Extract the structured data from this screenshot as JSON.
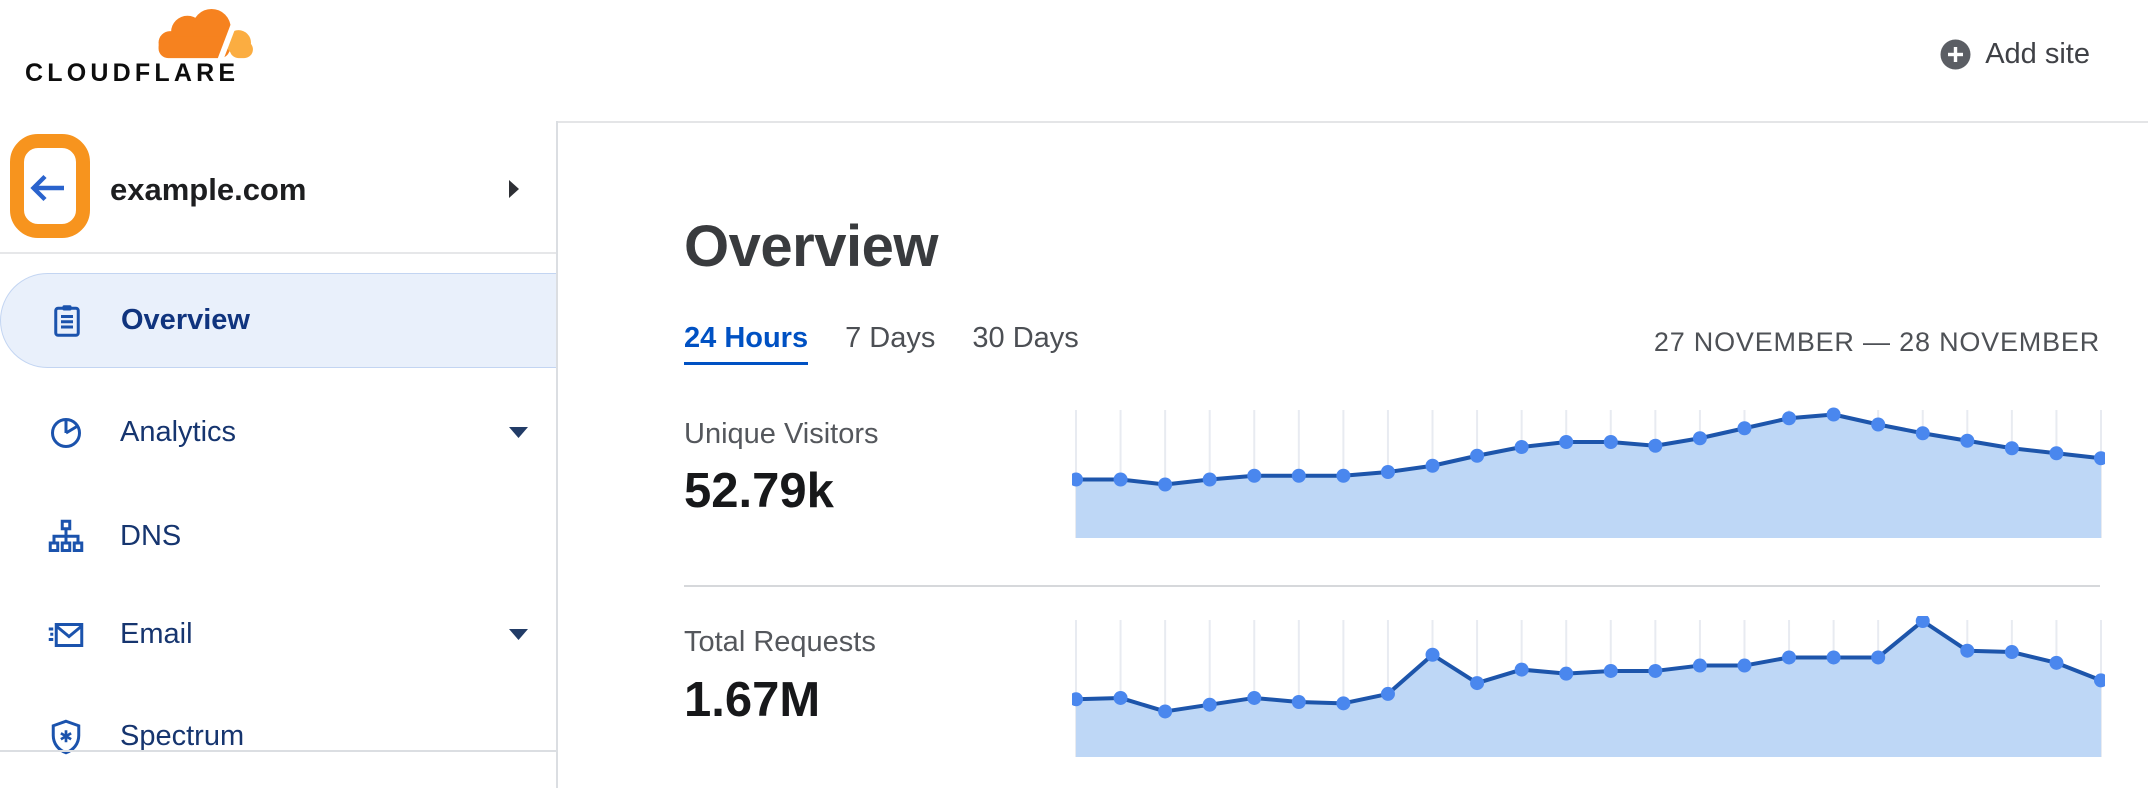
{
  "header": {
    "logo_text": "CLOUDFLARE",
    "add_site_label": "Add site"
  },
  "sidebar": {
    "site_name": "example.com",
    "items": [
      {
        "label": "Overview",
        "icon": "clipboard-icon",
        "active": true,
        "has_caret": false
      },
      {
        "label": "Analytics",
        "icon": "pie-chart-icon",
        "active": false,
        "has_caret": true
      },
      {
        "label": "DNS",
        "icon": "sitemap-icon",
        "active": false,
        "has_caret": false
      },
      {
        "label": "Email",
        "icon": "envelope-icon",
        "active": false,
        "has_caret": true
      },
      {
        "label": "Spectrum",
        "icon": "shield-icon",
        "active": false,
        "has_caret": false
      }
    ]
  },
  "main": {
    "title": "Overview",
    "tabs": [
      {
        "label": "24 Hours",
        "active": true
      },
      {
        "label": "7 Days",
        "active": false
      },
      {
        "label": "30 Days",
        "active": false
      }
    ],
    "date_range": "27 NOVEMBER — 28 NOVEMBER",
    "stats": [
      {
        "label": "Unique Visitors",
        "value": "52.79k"
      },
      {
        "label": "Total Requests",
        "value": "1.67M"
      }
    ]
  },
  "chart_data": [
    {
      "type": "area",
      "title": "Unique Visitors",
      "display_value": "52.79k",
      "points": 24,
      "x_axis": "hourly points, 27 November — 28 November (24 hours)",
      "y_axis": "unlabeled sparkline (relative height, % of chart peak)",
      "relative_values_pct": [
        46,
        46,
        42,
        46,
        49,
        49,
        49,
        52,
        57,
        65,
        72,
        76,
        76,
        73,
        79,
        87,
        95,
        98,
        90,
        83,
        77,
        71,
        67,
        63
      ],
      "grid": "vertical gridline at every point",
      "legend": "none"
    },
    {
      "type": "area",
      "title": "Total Requests",
      "display_value": "1.67M",
      "points": 24,
      "x_axis": "hourly points, 27 November — 28 November (24 hours)",
      "y_axis": "unlabeled sparkline (relative height, % of chart peak)",
      "relative_values_pct": [
        42,
        43,
        33,
        38,
        43,
        40,
        39,
        46,
        75,
        54,
        64,
        61,
        63,
        63,
        67,
        67,
        73,
        73,
        73,
        100,
        78,
        77,
        69,
        56
      ],
      "grid": "vertical gridline at every point",
      "legend": "none"
    }
  ],
  "palette": {
    "brand_orange": "#F6821F",
    "brand_orange_light": "#FBAD41",
    "annotation_orange": "#F7941E",
    "link_blue": "#0051C3",
    "nav_text": "#16356F",
    "nav_active_text": "#10347E",
    "nav_active_bg": "#E9F0FB",
    "icon_blue": "#1B53AD",
    "back_arrow_blue": "#2A63CD",
    "chart_dot": "#4A87EE",
    "chart_line": "#1D55AB",
    "chart_fill": "#BED7F6",
    "chart_gridline": "#E8EBF1"
  }
}
